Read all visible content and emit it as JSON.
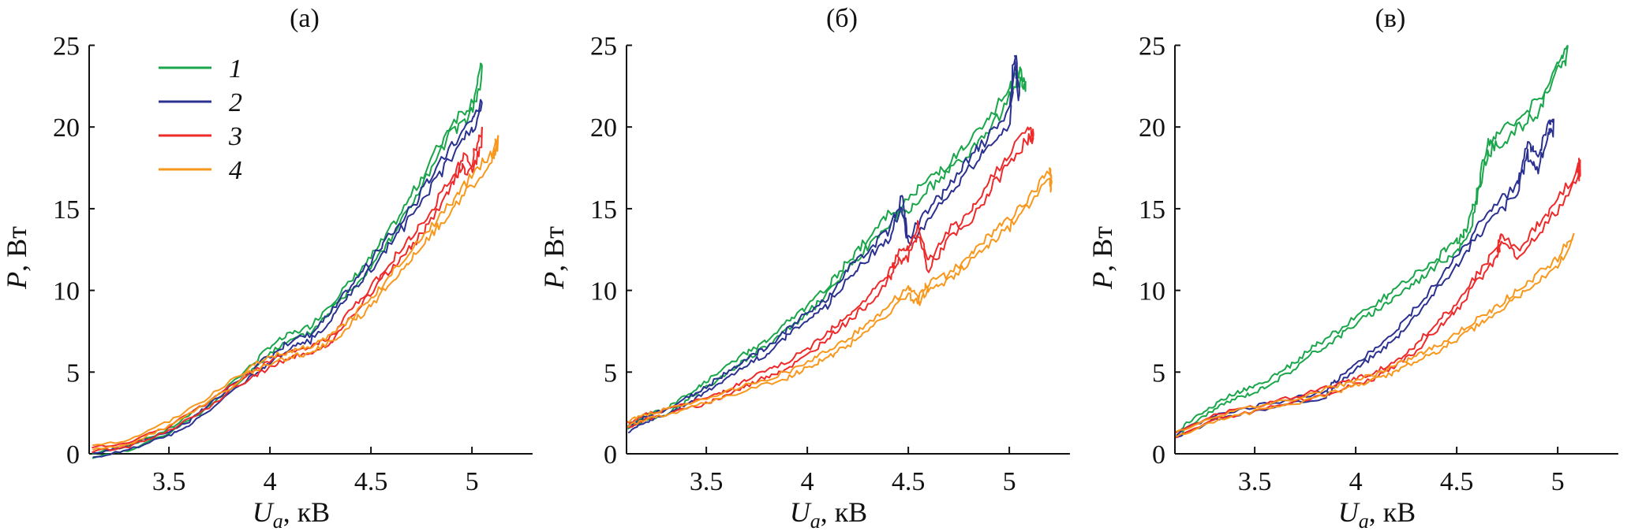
{
  "colors": {
    "1": "#1aa64a",
    "2": "#2b3190",
    "3": "#ee2a2a",
    "4": "#f7981d"
  },
  "legend": [
    {
      "key": "1",
      "label": "1"
    },
    {
      "key": "2",
      "label": "2"
    },
    {
      "key": "3",
      "label": "3"
    },
    {
      "key": "4",
      "label": "4"
    }
  ],
  "chart_data": [
    {
      "type": "line",
      "title": "(а)",
      "xlabel": {
        "symbol": "U",
        "sub": "a",
        "unit": ", кВ"
      },
      "ylabel": {
        "symbol": "P",
        "unit": ", Вт"
      },
      "xlim": [
        3.105,
        5.3
      ],
      "ylim": [
        0,
        25
      ],
      "xticks": [
        "3.5",
        "4",
        "4.5",
        "5"
      ],
      "xtick_values": [
        3.5,
        4,
        4.5,
        5
      ],
      "yticks": [
        "0",
        "5",
        "10",
        "15",
        "20",
        "25"
      ],
      "ytick_values": [
        0,
        5,
        10,
        15,
        20,
        25
      ],
      "legend_position": "top-left",
      "series": [
        {
          "name": "1",
          "points": [
            [
              3.12,
              0
            ],
            [
              3.3,
              0.5
            ],
            [
              3.5,
              1.5
            ],
            [
              3.7,
              3.2
            ],
            [
              3.9,
              5.3
            ],
            [
              4.0,
              6.6
            ],
            [
              4.1,
              7.3
            ],
            [
              4.2,
              7.8
            ],
            [
              4.3,
              9.2
            ],
            [
              4.4,
              10.5
            ],
            [
              4.5,
              12
            ],
            [
              4.6,
              13.8
            ],
            [
              4.7,
              15.8
            ],
            [
              4.8,
              18
            ],
            [
              4.9,
              20.3
            ],
            [
              5.0,
              21.5
            ],
            [
              5.05,
              23.8
            ]
          ]
        },
        {
          "name": "2",
          "points": [
            [
              3.12,
              0
            ],
            [
              3.3,
              0.5
            ],
            [
              3.5,
              1.4
            ],
            [
              3.6,
              2
            ],
            [
              3.7,
              3
            ],
            [
              3.9,
              5
            ],
            [
              4.0,
              6
            ],
            [
              4.1,
              6.9
            ],
            [
              4.2,
              7.3
            ],
            [
              4.3,
              8.6
            ],
            [
              4.4,
              10.3
            ],
            [
              4.5,
              11.8
            ],
            [
              4.6,
              13.5
            ],
            [
              4.7,
              15
            ],
            [
              4.8,
              17
            ],
            [
              4.9,
              18.8
            ],
            [
              5.0,
              20.5
            ],
            [
              5.05,
              21.5
            ]
          ]
        },
        {
          "name": "3",
          "points": [
            [
              3.12,
              0.4
            ],
            [
              3.3,
              0.7
            ],
            [
              3.5,
              1.7
            ],
            [
              3.7,
              3.2
            ],
            [
              3.9,
              5
            ],
            [
              4.0,
              5.6
            ],
            [
              4.1,
              6.3
            ],
            [
              4.2,
              6.6
            ],
            [
              4.3,
              7.1
            ],
            [
              4.4,
              8.8
            ],
            [
              4.5,
              10.2
            ],
            [
              4.6,
              11.8
            ],
            [
              4.7,
              13.2
            ],
            [
              4.8,
              14.8
            ],
            [
              4.9,
              17
            ],
            [
              4.95,
              18.2
            ],
            [
              5.0,
              17.8
            ],
            [
              5.05,
              20
            ]
          ]
        },
        {
          "name": "4",
          "points": [
            [
              3.12,
              0.5
            ],
            [
              3.3,
              0.8
            ],
            [
              3.5,
              2
            ],
            [
              3.7,
              3.5
            ],
            [
              3.9,
              5.3
            ],
            [
              4.0,
              5.9
            ],
            [
              4.1,
              6.3
            ],
            [
              4.2,
              6.6
            ],
            [
              4.3,
              7.2
            ],
            [
              4.4,
              8.3
            ],
            [
              4.5,
              9.5
            ],
            [
              4.6,
              11
            ],
            [
              4.7,
              12.5
            ],
            [
              4.8,
              14
            ],
            [
              4.9,
              15.5
            ],
            [
              5.0,
              17
            ],
            [
              5.1,
              18.5
            ],
            [
              5.13,
              19.5
            ]
          ]
        }
      ]
    },
    {
      "type": "line",
      "title": "(б)",
      "xlabel": {
        "symbol": "U",
        "sub": "a",
        "unit": ", кВ"
      },
      "ylabel": {
        "symbol": "P",
        "unit": ", Вт"
      },
      "xlim": [
        3.105,
        5.3
      ],
      "ylim": [
        0,
        25
      ],
      "xticks": [
        "3.5",
        "4",
        "4.5",
        "5"
      ],
      "xtick_values": [
        3.5,
        4,
        4.5,
        5
      ],
      "yticks": [
        "0",
        "5",
        "10",
        "15",
        "20",
        "25"
      ],
      "ytick_values": [
        0,
        5,
        10,
        15,
        20,
        25
      ],
      "series": [
        {
          "name": "1",
          "points": [
            [
              3.11,
              1.7
            ],
            [
              3.2,
              2.4
            ],
            [
              3.3,
              2.7
            ],
            [
              3.4,
              3.6
            ],
            [
              3.5,
              4.4
            ],
            [
              3.6,
              5.3
            ],
            [
              3.7,
              6.2
            ],
            [
              3.8,
              6.9
            ],
            [
              3.9,
              8
            ],
            [
              4.0,
              9
            ],
            [
              4.1,
              10.2
            ],
            [
              4.2,
              11.8
            ],
            [
              4.3,
              13.2
            ],
            [
              4.4,
              14.6
            ],
            [
              4.5,
              15.5
            ],
            [
              4.6,
              16.8
            ],
            [
              4.7,
              17.8
            ],
            [
              4.8,
              19
            ],
            [
              4.9,
              20.4
            ],
            [
              5.0,
              22.5
            ],
            [
              5.05,
              23.5
            ],
            [
              5.08,
              22.8
            ]
          ]
        },
        {
          "name": "2",
          "points": [
            [
              3.11,
              1.6
            ],
            [
              3.2,
              2.3
            ],
            [
              3.3,
              2.7
            ],
            [
              3.4,
              3.4
            ],
            [
              3.5,
              4.1
            ],
            [
              3.6,
              5
            ],
            [
              3.7,
              5.8
            ],
            [
              3.8,
              6.5
            ],
            [
              3.9,
              7.6
            ],
            [
              4.0,
              8.6
            ],
            [
              4.1,
              9.5
            ],
            [
              4.2,
              11.2
            ],
            [
              4.3,
              12.5
            ],
            [
              4.4,
              13.6
            ],
            [
              4.47,
              15.8
            ],
            [
              4.5,
              13.2
            ],
            [
              4.6,
              15
            ],
            [
              4.7,
              16.3
            ],
            [
              4.8,
              18
            ],
            [
              4.9,
              19.5
            ],
            [
              5.0,
              21
            ],
            [
              5.03,
              24.8
            ],
            [
              5.05,
              22
            ]
          ]
        },
        {
          "name": "3",
          "points": [
            [
              3.11,
              1.9
            ],
            [
              3.2,
              2.4
            ],
            [
              3.3,
              2.7
            ],
            [
              3.5,
              3.4
            ],
            [
              3.6,
              3.9
            ],
            [
              3.7,
              4.5
            ],
            [
              3.8,
              5.1
            ],
            [
              3.9,
              5.6
            ],
            [
              4.0,
              6.4
            ],
            [
              4.1,
              7.5
            ],
            [
              4.2,
              8.5
            ],
            [
              4.3,
              9.6
            ],
            [
              4.4,
              11
            ],
            [
              4.45,
              12.3
            ],
            [
              4.5,
              12.5
            ],
            [
              4.55,
              14
            ],
            [
              4.6,
              11.7
            ],
            [
              4.7,
              13.7
            ],
            [
              4.8,
              14.5
            ],
            [
              4.9,
              16.6
            ],
            [
              5.0,
              18.5
            ],
            [
              5.1,
              20
            ],
            [
              5.12,
              19.5
            ]
          ]
        },
        {
          "name": "4",
          "points": [
            [
              3.11,
              2
            ],
            [
              3.2,
              2.4
            ],
            [
              3.3,
              2.7
            ],
            [
              3.5,
              3.4
            ],
            [
              3.7,
              4.2
            ],
            [
              3.9,
              5
            ],
            [
              4.0,
              5.6
            ],
            [
              4.1,
              6.3
            ],
            [
              4.2,
              7
            ],
            [
              4.3,
              8
            ],
            [
              4.4,
              9
            ],
            [
              4.5,
              10.2
            ],
            [
              4.55,
              9.6
            ],
            [
              4.6,
              10.5
            ],
            [
              4.7,
              11
            ],
            [
              4.8,
              12.2
            ],
            [
              4.9,
              13.3
            ],
            [
              5.0,
              14.4
            ],
            [
              5.1,
              15.8
            ],
            [
              5.2,
              17.3
            ],
            [
              5.21,
              16.6
            ]
          ]
        }
      ]
    },
    {
      "type": "line",
      "title": "(в)",
      "xlabel": {
        "symbol": "U",
        "sub": "a",
        "unit": ", кВ"
      },
      "ylabel": {
        "symbol": "P",
        "unit": ", Вт"
      },
      "xlim": [
        3.105,
        5.3
      ],
      "ylim": [
        0,
        25
      ],
      "xticks": [
        "3.5",
        "4",
        "4.5",
        "5"
      ],
      "xtick_values": [
        3.5,
        4,
        4.5,
        5
      ],
      "yticks": [
        "0",
        "5",
        "10",
        "15",
        "20",
        "25"
      ],
      "ytick_values": [
        0,
        5,
        10,
        15,
        20,
        25
      ],
      "series": [
        {
          "name": "1",
          "points": [
            [
              3.11,
              1.3
            ],
            [
              3.2,
              2.2
            ],
            [
              3.3,
              3
            ],
            [
              3.4,
              3.7
            ],
            [
              3.5,
              4.1
            ],
            [
              3.6,
              4.8
            ],
            [
              3.7,
              5.6
            ],
            [
              3.8,
              6.6
            ],
            [
              3.9,
              7.4
            ],
            [
              4.0,
              8.4
            ],
            [
              4.1,
              9.2
            ],
            [
              4.2,
              10.1
            ],
            [
              4.3,
              11
            ],
            [
              4.4,
              12
            ],
            [
              4.5,
              13
            ],
            [
              4.55,
              13.6
            ],
            [
              4.6,
              16
            ],
            [
              4.65,
              19
            ],
            [
              4.7,
              19.5
            ],
            [
              4.8,
              20.5
            ],
            [
              4.9,
              21.5
            ],
            [
              5.0,
              24
            ],
            [
              5.05,
              25
            ]
          ]
        },
        {
          "name": "2",
          "points": [
            [
              3.11,
              1.2
            ],
            [
              3.3,
              2.4
            ],
            [
              3.5,
              2.9
            ],
            [
              3.7,
              3.4
            ],
            [
              3.85,
              3.8
            ],
            [
              3.9,
              4.5
            ],
            [
              4.0,
              5.5
            ],
            [
              4.1,
              6.5
            ],
            [
              4.2,
              7.5
            ],
            [
              4.3,
              9
            ],
            [
              4.4,
              10.5
            ],
            [
              4.5,
              12
            ],
            [
              4.6,
              13.8
            ],
            [
              4.7,
              15.3
            ],
            [
              4.8,
              16.5
            ],
            [
              4.85,
              19
            ],
            [
              4.9,
              18
            ],
            [
              4.95,
              20
            ],
            [
              4.98,
              20.5
            ]
          ]
        },
        {
          "name": "3",
          "points": [
            [
              3.11,
              1.3
            ],
            [
              3.3,
              2.4
            ],
            [
              3.5,
              2.9
            ],
            [
              3.7,
              3.5
            ],
            [
              3.9,
              4.2
            ],
            [
              4.0,
              4.6
            ],
            [
              4.1,
              5
            ],
            [
              4.2,
              5.7
            ],
            [
              4.3,
              6.7
            ],
            [
              4.4,
              8
            ],
            [
              4.5,
              9.2
            ],
            [
              4.6,
              11
            ],
            [
              4.7,
              12.5
            ],
            [
              4.72,
              13.5
            ],
            [
              4.8,
              12.5
            ],
            [
              4.9,
              14
            ],
            [
              5.0,
              15.5
            ],
            [
              5.1,
              17.5
            ],
            [
              5.11,
              18
            ]
          ]
        },
        {
          "name": "4",
          "points": [
            [
              3.11,
              1.3
            ],
            [
              3.3,
              2.3
            ],
            [
              3.5,
              2.9
            ],
            [
              3.7,
              3.4
            ],
            [
              3.9,
              4.1
            ],
            [
              4.0,
              4.5
            ],
            [
              4.1,
              4.9
            ],
            [
              4.2,
              5.4
            ],
            [
              4.3,
              6
            ],
            [
              4.4,
              6.6
            ],
            [
              4.5,
              7.4
            ],
            [
              4.6,
              8.2
            ],
            [
              4.7,
              9
            ],
            [
              4.8,
              10
            ],
            [
              4.9,
              11
            ],
            [
              5.0,
              12
            ],
            [
              5.08,
              13.5
            ]
          ]
        }
      ]
    }
  ]
}
